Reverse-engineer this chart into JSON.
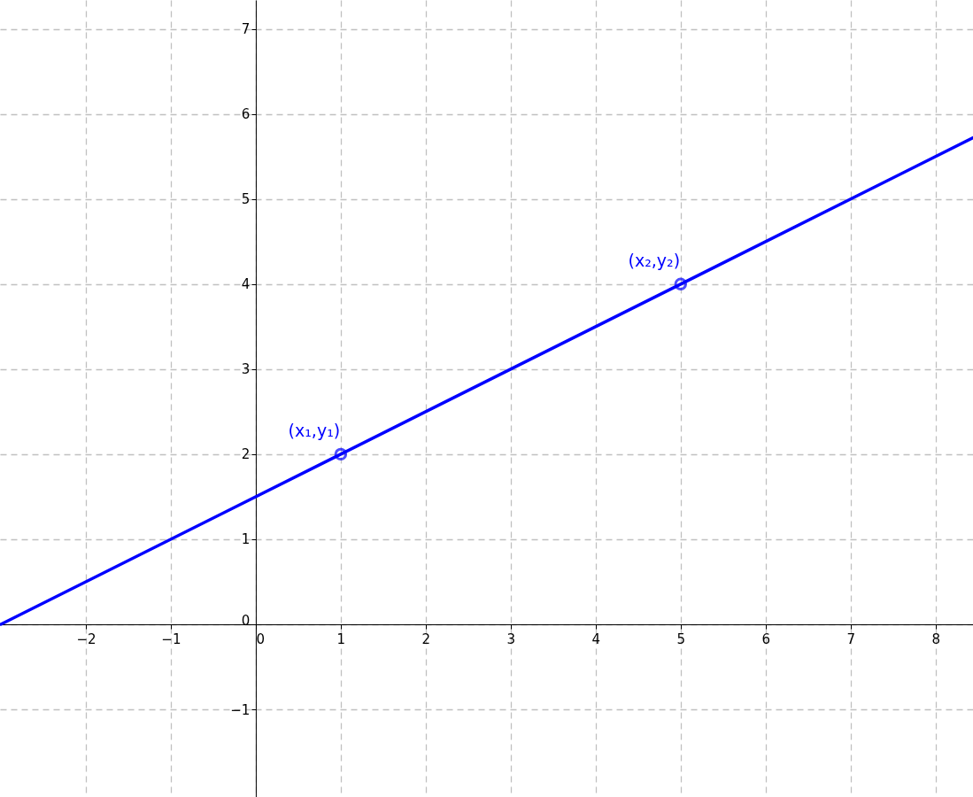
{
  "chart_data": {
    "type": "line",
    "xlim": [
      -3.01,
      8.44
    ],
    "ylim": [
      -2.03,
      7.34
    ],
    "xticks": [
      {
        "value": -2,
        "label": "−2"
      },
      {
        "value": -1,
        "label": "−1"
      },
      0,
      1,
      2,
      3,
      4,
      5,
      6,
      7,
      8
    ],
    "yticks": [
      {
        "value": -1,
        "label": "−1"
      },
      0,
      1,
      2,
      3,
      4,
      5,
      6,
      7
    ],
    "grid": true,
    "series": [
      {
        "color": "#0000ff",
        "x": [
          -3,
          1,
          5,
          8.44
        ],
        "values": [
          0,
          2,
          4,
          5.72
        ],
        "marker": "none"
      },
      {
        "type": "scatter",
        "color": "#0000ff",
        "x": [
          1,
          5
        ],
        "values": [
          2,
          4
        ],
        "marker": "circle"
      }
    ],
    "annotations": [
      {
        "text": "(x₁,y₁)",
        "x": 1,
        "y": 2
      },
      {
        "text": "(x₂,y₂)",
        "x": 5,
        "y": 4
      }
    ]
  }
}
